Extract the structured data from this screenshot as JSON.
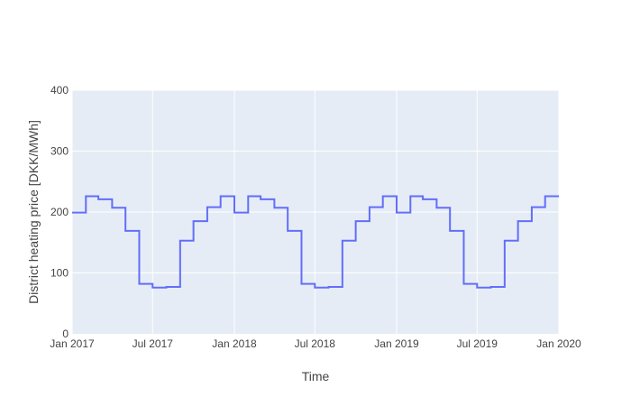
{
  "chart_data": {
    "type": "line",
    "line_shape": "step-post",
    "xlabel": "Time",
    "ylabel": "District heating price [DKK/MWh]",
    "x_range": [
      "2017-01-01",
      "2020-01-01"
    ],
    "ylim": [
      0,
      400
    ],
    "y_ticks": [
      0,
      100,
      200,
      300,
      400
    ],
    "x_ticks": [
      {
        "date": "2017-01-01",
        "label": "Jan 2017"
      },
      {
        "date": "2017-07-01",
        "label": "Jul 2017"
      },
      {
        "date": "2018-01-01",
        "label": "Jan 2018"
      },
      {
        "date": "2018-07-01",
        "label": "Jul 2018"
      },
      {
        "date": "2019-01-01",
        "label": "Jan 2019"
      },
      {
        "date": "2019-07-01",
        "label": "Jul 2019"
      },
      {
        "date": "2020-01-01",
        "label": "Jan 2020"
      }
    ],
    "grid": true,
    "colors": {
      "plot_background": "#E5ECF6",
      "grid": "#ffffff",
      "line": "#636EFA",
      "text": "#444444"
    },
    "series": [
      {
        "x": [
          "2017-01-01",
          "2017-02-01",
          "2017-03-01",
          "2017-04-01",
          "2017-05-01",
          "2017-06-01",
          "2017-07-01",
          "2017-08-01",
          "2017-09-01",
          "2017-10-01",
          "2017-11-01",
          "2017-12-01",
          "2018-01-01",
          "2018-02-01",
          "2018-03-01",
          "2018-04-01",
          "2018-05-01",
          "2018-06-01",
          "2018-07-01",
          "2018-08-01",
          "2018-09-01",
          "2018-10-01",
          "2018-11-01",
          "2018-12-01",
          "2019-01-01",
          "2019-02-01",
          "2019-03-01",
          "2019-04-01",
          "2019-05-01",
          "2019-06-01",
          "2019-07-01",
          "2019-08-01",
          "2019-09-01",
          "2019-10-01",
          "2019-11-01",
          "2019-12-01",
          "2020-01-01"
        ],
        "y": [
          199,
          226,
          221,
          207,
          169,
          82,
          76,
          77,
          153,
          185,
          208,
          226,
          199,
          226,
          221,
          207,
          169,
          82,
          76,
          77,
          153,
          185,
          208,
          226,
          199,
          226,
          221,
          207,
          169,
          82,
          76,
          77,
          153,
          185,
          208,
          226,
          226
        ]
      }
    ]
  }
}
